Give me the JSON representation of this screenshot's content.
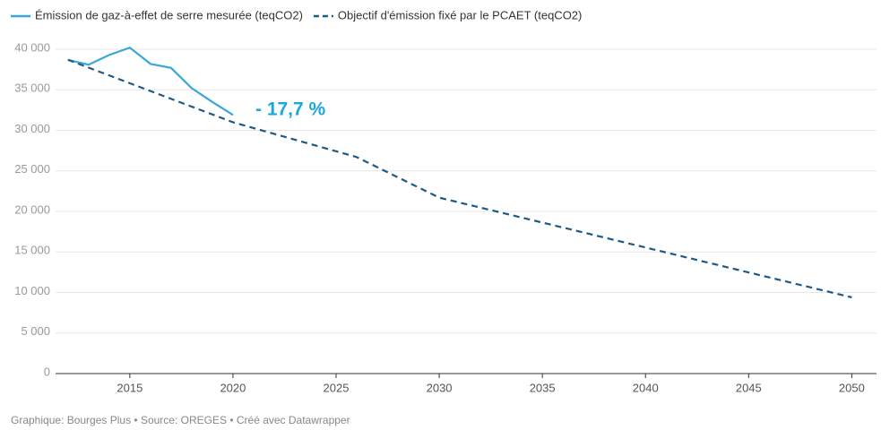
{
  "chart_data": {
    "type": "line",
    "legend_position": "top-left",
    "series": [
      {
        "name": "Émission de gaz-à-effet de serre mesurée (teqCO2)",
        "color": "#3aa7d8",
        "dashed": false,
        "x": [
          2012,
          2013,
          2014,
          2015,
          2016,
          2017,
          2018,
          2019,
          2020
        ],
        "values": [
          38700,
          38100,
          39300,
          40200,
          38200,
          37700,
          35200,
          33500,
          31900
        ]
      },
      {
        "name": "Objectif d'émission fixé par le PCAET (teqCO2)",
        "color": "#1d5a85",
        "dashed": true,
        "x": [
          2012,
          2020,
          2026,
          2030,
          2050
        ],
        "values": [
          38700,
          31000,
          26700,
          21700,
          9400
        ]
      }
    ],
    "annotation": "- 17,7 %",
    "source": "Graphique: Bourges Plus • Source: OREGES • Créé avec Datawrapper",
    "xlim": [
      2011.4,
      2051.2
    ],
    "xticks": [
      2015,
      2020,
      2025,
      2030,
      2035,
      2040,
      2045,
      2050
    ],
    "ylim": [
      0,
      40000
    ],
    "yticks": [
      0,
      {
        "value": 5000,
        "label": "5 000"
      },
      {
        "value": 10000,
        "label": "10 000"
      },
      {
        "value": 15000,
        "label": "15 000"
      },
      {
        "value": 20000,
        "label": "20 000"
      },
      {
        "value": 25000,
        "label": "25 000"
      },
      {
        "value": 30000,
        "label": "30 000"
      },
      {
        "value": 35000,
        "label": "35 000"
      },
      {
        "value": 40000,
        "label": "40 000"
      }
    ],
    "grid": true
  }
}
